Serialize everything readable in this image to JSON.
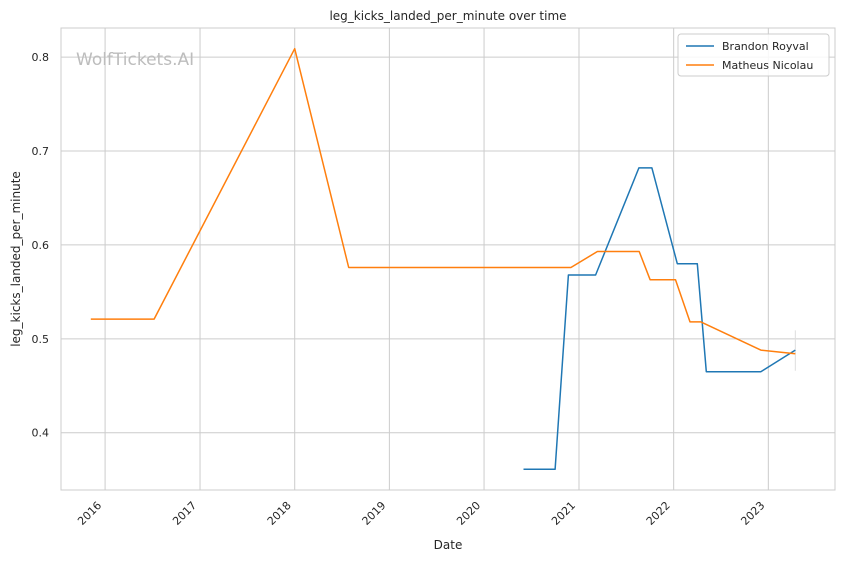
{
  "chart_data": {
    "type": "line",
    "title": "leg_kicks_landed_per_minute over time",
    "xlabel": "Date",
    "ylabel": "leg_kicks_landed_per_minute",
    "watermark": "WolfTickets.AI",
    "xlim": [
      "2015-07-15",
      "2023-09-15"
    ],
    "ylim": [
      0.339,
      0.831
    ],
    "x_ticks": [
      "2016",
      "2017",
      "2018",
      "2019",
      "2020",
      "2021",
      "2022",
      "2023"
    ],
    "y_ticks": [
      0.4,
      0.5,
      0.6,
      0.7,
      0.8
    ],
    "y_tick_labels": [
      "0.4",
      "0.5",
      "0.6",
      "0.7",
      "0.8"
    ],
    "grid": true,
    "legend_position": "top-right",
    "series": [
      {
        "name": "Brandon Royval",
        "color": "#1f77b4",
        "points": [
          [
            "2020-06-01",
            0.361
          ],
          [
            "2020-10-01",
            0.361
          ],
          [
            "2020-11-21",
            0.568
          ],
          [
            "2021-03-06",
            0.568
          ],
          [
            "2021-08-20",
            0.682
          ],
          [
            "2021-10-09",
            0.682
          ],
          [
            "2022-01-15",
            0.58
          ],
          [
            "2022-04-02",
            0.58
          ],
          [
            "2022-05-07",
            0.465
          ],
          [
            "2022-12-03",
            0.465
          ],
          [
            "2023-04-15",
            0.488
          ]
        ]
      },
      {
        "name": "Matheus Nicolau",
        "color": "#ff7f0e",
        "points": [
          [
            "2015-11-07",
            0.521
          ],
          [
            "2016-07-08",
            0.521
          ],
          [
            "2018-01-01",
            0.809
          ],
          [
            "2018-07-28",
            0.576
          ],
          [
            "2020-12-01",
            0.576
          ],
          [
            "2021-03-13",
            0.593
          ],
          [
            "2021-08-21",
            0.593
          ],
          [
            "2021-10-02",
            0.563
          ],
          [
            "2022-01-08",
            0.563
          ],
          [
            "2022-03-05",
            0.518
          ],
          [
            "2022-04-16",
            0.518
          ],
          [
            "2022-12-03",
            0.488
          ],
          [
            "2023-04-15",
            0.484
          ]
        ]
      }
    ]
  }
}
